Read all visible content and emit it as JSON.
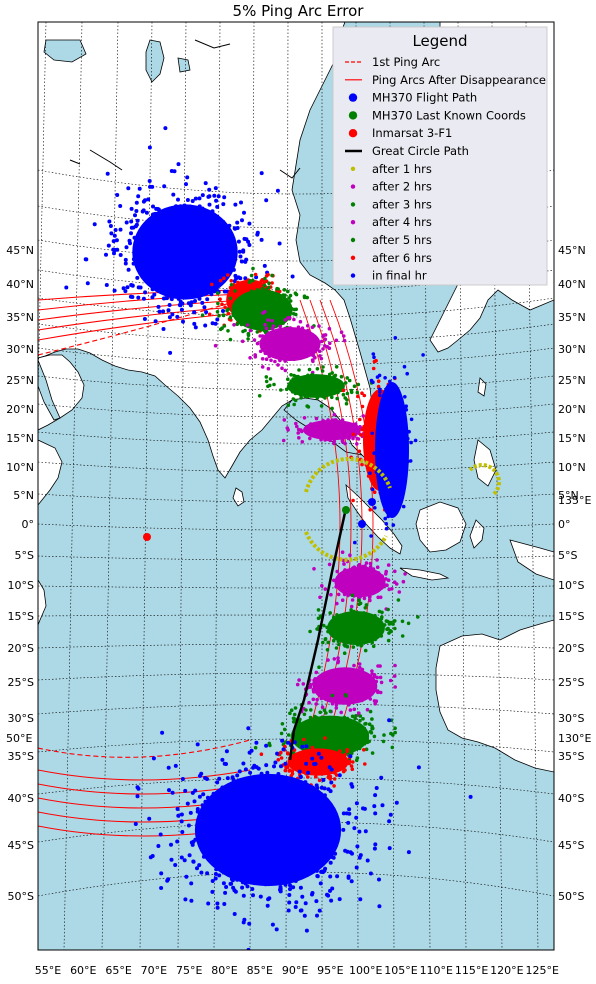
{
  "title": "5% Ping Arc Error",
  "colors": {
    "ocean": "#add8e6",
    "land": "#ffffff",
    "coast": "#000000",
    "grid": "#000000",
    "arc": "#ff0000",
    "path": "#0000ff",
    "great_circle": "#000000",
    "satellite": "#ff0000",
    "yellow": "#bfbf00",
    "magenta": "#bf00bf",
    "green": "#008000",
    "legend_bg": "#eaeaf2"
  },
  "legend": {
    "title": "Legend",
    "items": [
      {
        "label": "1st Ping Arc",
        "style": "dashed-line",
        "color": "#ff0000"
      },
      {
        "label": "Ping Arcs After Disappearance",
        "style": "line",
        "color": "#ff0000"
      },
      {
        "label": "MH370 Flight Path",
        "style": "big-dot",
        "color": "#0000ff"
      },
      {
        "label": "MH370 Last Known Coords",
        "style": "big-dot",
        "color": "#008000"
      },
      {
        "label": "Inmarsat 3-F1",
        "style": "big-dot",
        "color": "#ff0000"
      },
      {
        "label": "Great Circle Path",
        "style": "thick-line",
        "color": "#000000"
      },
      {
        "label": "after 1 hrs",
        "style": "dot",
        "color": "#bfbf00"
      },
      {
        "label": "after 2 hrs",
        "style": "dot",
        "color": "#bf00bf"
      },
      {
        "label": "after 3 hrs",
        "style": "dot",
        "color": "#008000"
      },
      {
        "label": "after 4 hrs",
        "style": "dot",
        "color": "#bf00bf"
      },
      {
        "label": "after 5 hrs",
        "style": "dot",
        "color": "#008000"
      },
      {
        "label": "after 6 hrs",
        "style": "dot",
        "color": "#ff0000"
      },
      {
        "label": "in final hr",
        "style": "dot",
        "color": "#0000ff"
      }
    ]
  },
  "left_lat_labels": [
    "45°N",
    "40°N",
    "35°N",
    "30°N",
    "25°N",
    "20°N",
    "15°N",
    "10°N",
    "5°N",
    "0°",
    "5°S",
    "10°S",
    "15°S",
    "20°S",
    "25°S",
    "30°S",
    "35°S",
    "40°S",
    "45°S",
    "50°S"
  ],
  "right_lat_labels": [
    "45°N",
    "40°N",
    "35°N",
    "30°N",
    "25°N",
    "20°N",
    "15°N",
    "10°N",
    "5°N",
    "0°",
    "5°S",
    "10°S",
    "15°S",
    "20°S",
    "25°S",
    "30°S",
    "35°S",
    "40°S",
    "45°S",
    "50°S"
  ],
  "bottom_lon_labels": [
    "55°E",
    "60°E",
    "65°E",
    "70°E",
    "75°E",
    "80°E",
    "85°E",
    "90°E",
    "95°E",
    "100°E",
    "105°E",
    "110°E",
    "115°E",
    "120°E",
    "125°E"
  ],
  "edge_lon_labels": {
    "left": "50°E",
    "right_top": "135°E",
    "right_bottom": "130°E"
  }
}
